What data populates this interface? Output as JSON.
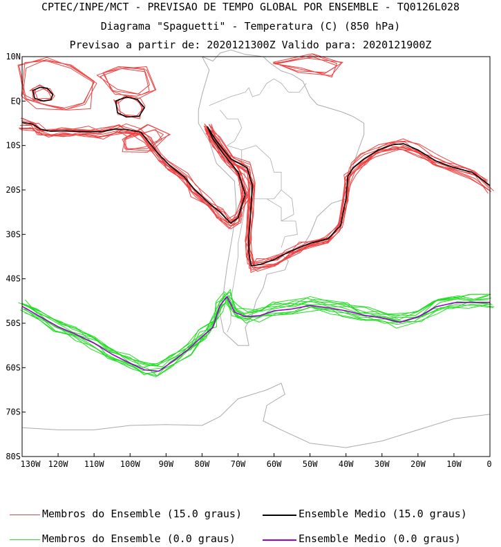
{
  "titles": {
    "line1": "CPTEC/INPE/MCT - PREVISAO DE TEMPO GLOBAL POR ENSEMBLE - TQ0126L028",
    "line2": "Diagrama \"Spaguetti\" - Temperatura (C) (850 hPa)",
    "line3": "Previsao a partir de: 2020121300Z  Valido para: 2020121900Z"
  },
  "map": {
    "lon_range": [
      -130,
      0
    ],
    "lat_range": [
      -80,
      10
    ],
    "lat_labels": [
      "10N",
      "EQ",
      "10S",
      "20S",
      "30S",
      "40S",
      "50S",
      "60S",
      "70S",
      "80S"
    ],
    "lon_labels": [
      "130W",
      "120W",
      "110W",
      "100W",
      "90W",
      "80W",
      "70W",
      "60W",
      "50W",
      "40W",
      "30W",
      "20W",
      "10W",
      "0"
    ],
    "colors": {
      "members_15": "#f04040",
      "mean_15": "#000000",
      "members_0": "#22dd22",
      "mean_0": "#9900cc",
      "coast": "#aaaaaa"
    },
    "mean_15": [
      [
        -130,
        -4.8
      ],
      [
        -127,
        -5.2
      ],
      [
        -125,
        -6.3
      ],
      [
        -122,
        -6.8
      ],
      [
        -118,
        -6.7
      ],
      [
        -112,
        -6.9
      ],
      [
        -108,
        -6.9
      ],
      [
        -104,
        -6.3
      ],
      [
        -101,
        -6.4
      ],
      [
        -97,
        -7
      ],
      [
        -95,
        -9
      ],
      [
        -92,
        -12
      ],
      [
        -89,
        -14.5
      ],
      [
        -85,
        -17
      ],
      [
        -82,
        -20
      ],
      [
        -78,
        -23
      ],
      [
        -75,
        -25
      ],
      [
        -72,
        -27.5
      ],
      [
        -70,
        -26.3
      ],
      [
        -68,
        -21
      ],
      [
        -70,
        -16
      ],
      [
        -74,
        -12
      ],
      [
        -77,
        -8.5
      ],
      [
        -78.5,
        -5.8
      ],
      [
        -76,
        -9
      ],
      [
        -72,
        -13
      ],
      [
        -67.5,
        -15
      ],
      [
        -66,
        -19
      ],
      [
        -66.5,
        -25
      ],
      [
        -67,
        -31
      ],
      [
        -67,
        -34.3
      ],
      [
        -66.3,
        -37.1
      ],
      [
        -64,
        -36.8
      ],
      [
        -60,
        -35.7
      ],
      [
        -56,
        -34
      ],
      [
        -53,
        -33
      ],
      [
        -50,
        -32
      ],
      [
        -45,
        -31
      ],
      [
        -41.5,
        -28
      ],
      [
        -40,
        -22
      ],
      [
        -39.5,
        -17
      ],
      [
        -38,
        -15
      ],
      [
        -35,
        -13
      ],
      [
        -31,
        -11
      ],
      [
        -27,
        -9.8
      ],
      [
        -24,
        -9.6
      ],
      [
        -20,
        -11
      ],
      [
        -15,
        -13.5
      ],
      [
        -10,
        -15
      ],
      [
        -5,
        -16
      ],
      [
        0,
        -19
      ]
    ],
    "mean_0": [
      [
        -130,
        -46.2
      ],
      [
        -125,
        -48.5
      ],
      [
        -120,
        -50.8
      ],
      [
        -115,
        -52.5
      ],
      [
        -110,
        -54.5
      ],
      [
        -105,
        -57
      ],
      [
        -100,
        -59
      ],
      [
        -96,
        -60.5
      ],
      [
        -92,
        -60.8
      ],
      [
        -88,
        -58.5
      ],
      [
        -84,
        -56
      ],
      [
        -80,
        -53
      ],
      [
        -77,
        -51
      ],
      [
        -75,
        -46
      ],
      [
        -73,
        -44
      ],
      [
        -71,
        -47.5
      ],
      [
        -68,
        -48.5
      ],
      [
        -64,
        -48.3
      ],
      [
        -60,
        -47.2
      ],
      [
        -55,
        -46.8
      ],
      [
        -50,
        -46
      ],
      [
        -45,
        -46.5
      ],
      [
        -40,
        -47.2
      ],
      [
        -35,
        -48.2
      ],
      [
        -30,
        -48.8
      ],
      [
        -25,
        -49.8
      ],
      [
        -20,
        -48.6
      ],
      [
        -15,
        -46.3
      ],
      [
        -10,
        -45.4
      ],
      [
        -5,
        -45.3
      ],
      [
        0,
        -45.3
      ]
    ],
    "closed_mean_15": [
      [
        [
          -127,
          2.4
        ],
        [
          -125,
          3.1
        ],
        [
          -123,
          2.9
        ],
        [
          -121.5,
          1.5
        ],
        [
          -122,
          0.3
        ],
        [
          -124,
          0
        ],
        [
          -126.5,
          0.6
        ],
        [
          -127,
          2.4
        ]
      ],
      [
        [
          -104,
          0
        ],
        [
          -101,
          0.9
        ],
        [
          -98,
          0.4
        ],
        [
          -96,
          -1.5
        ],
        [
          -97.5,
          -3.4
        ],
        [
          -101,
          -3.6
        ],
        [
          -103.5,
          -2.6
        ],
        [
          -104,
          0
        ]
      ]
    ],
    "red_blobs": [
      [
        [
          -130,
          8
        ],
        [
          -124,
          9.5
        ],
        [
          -116,
          8
        ],
        [
          -110,
          4
        ],
        [
          -112,
          -1
        ],
        [
          -118,
          -2
        ],
        [
          -125,
          -1
        ],
        [
          -130,
          1
        ]
      ],
      [
        [
          -108,
          6
        ],
        [
          -102,
          8
        ],
        [
          -96,
          7
        ],
        [
          -94,
          3
        ],
        [
          -98,
          1
        ],
        [
          -104,
          2
        ]
      ],
      [
        [
          -60,
          9
        ],
        [
          -50,
          10
        ],
        [
          -42,
          8
        ],
        [
          -45,
          6
        ],
        [
          -53,
          7
        ]
      ],
      [
        [
          -102,
          -8
        ],
        [
          -94,
          -6
        ],
        [
          -90,
          -8
        ],
        [
          -95,
          -11
        ],
        [
          -101,
          -11
        ]
      ]
    ],
    "coast_americas": [
      [
        -80,
        10
      ],
      [
        -78,
        7
      ],
      [
        -80,
        1.5
      ],
      [
        -81,
        -2
      ],
      [
        -81,
        -5
      ],
      [
        -78,
        -9
      ],
      [
        -76,
        -14
      ],
      [
        -71,
        -18
      ],
      [
        -70.5,
        -24
      ],
      [
        -71.5,
        -30
      ],
      [
        -73,
        -37
      ],
      [
        -74,
        -43
      ],
      [
        -75,
        -48
      ],
      [
        -74,
        -52
      ],
      [
        -70,
        -55
      ],
      [
        -67,
        -55
      ],
      [
        -68,
        -51
      ],
      [
        -66,
        -48
      ],
      [
        -65,
        -45
      ],
      [
        -63,
        -42
      ],
      [
        -62,
        -39
      ],
      [
        -57,
        -38
      ],
      [
        -56,
        -36
      ],
      [
        -58,
        -34.5
      ],
      [
        -53,
        -34
      ],
      [
        -50,
        -30
      ],
      [
        -48,
        -26
      ],
      [
        -44,
        -23
      ],
      [
        -40,
        -22
      ],
      [
        -39,
        -17
      ],
      [
        -37,
        -12
      ],
      [
        -35,
        -7.5
      ],
      [
        -35,
        -5
      ],
      [
        -38,
        -3.5
      ],
      [
        -41,
        -2.5
      ],
      [
        -45,
        -1.5
      ],
      [
        -48,
        -0.8
      ],
      [
        -50,
        1
      ],
      [
        -52,
        4.5
      ],
      [
        -55,
        6
      ],
      [
        -58,
        6.8
      ],
      [
        -61,
        8.5
      ],
      [
        -63,
        10
      ],
      [
        -68,
        10.5
      ],
      [
        -72,
        11.5
      ],
      [
        -75,
        10.8
      ],
      [
        -77,
        9
      ],
      [
        -80,
        10
      ]
    ],
    "borders": [
      [
        [
          -78,
          -1
        ],
        [
          -75,
          0
        ],
        [
          -72,
          1
        ],
        [
          -70,
          1.5
        ],
        [
          -68,
          2
        ],
        [
          -67,
          3
        ],
        [
          -66,
          1
        ],
        [
          -64,
          1.5
        ],
        [
          -62,
          4
        ],
        [
          -60,
          5
        ],
        [
          -58,
          4
        ],
        [
          -56,
          2
        ],
        [
          -53,
          2
        ],
        [
          -51,
          4
        ]
      ],
      [
        [
          -75,
          -2
        ],
        [
          -73,
          -4
        ],
        [
          -70,
          -4
        ],
        [
          -69,
          -6
        ],
        [
          -71,
          -9
        ],
        [
          -73,
          -10
        ],
        [
          -69,
          -11
        ],
        [
          -69,
          -14
        ],
        [
          -68,
          -17
        ],
        [
          -69,
          -18
        ],
        [
          -70,
          -19
        ]
      ],
      [
        [
          -69,
          -11
        ],
        [
          -65,
          -10
        ],
        [
          -61,
          -13
        ],
        [
          -60,
          -16
        ],
        [
          -58,
          -16
        ],
        [
          -58,
          -20
        ],
        [
          -60,
          -22
        ],
        [
          -62,
          -22
        ],
        [
          -67,
          -22
        ],
        [
          -68,
          -23
        ],
        [
          -68.5,
          -26
        ],
        [
          -69,
          -28
        ],
        [
          -70,
          -32
        ],
        [
          -70,
          -35
        ],
        [
          -71,
          -40
        ],
        [
          -72,
          -45
        ],
        [
          -72,
          -50
        ],
        [
          -73,
          -52
        ]
      ],
      [
        [
          -58,
          -20
        ],
        [
          -55,
          -22
        ],
        [
          -54.5,
          -25.5
        ],
        [
          -58,
          -27
        ],
        [
          -54,
          -27
        ],
        [
          -53.5,
          -30
        ],
        [
          -57,
          -30.5
        ],
        [
          -58,
          -33
        ]
      ],
      [
        [
          -62,
          -22
        ],
        [
          -60,
          -23
        ],
        [
          -58,
          -24
        ],
        [
          -58,
          -27
        ]
      ]
    ],
    "coast_antarctica": [
      [
        -130,
        -73.5
      ],
      [
        -120,
        -74
      ],
      [
        -110,
        -74
      ],
      [
        -100,
        -73
      ],
      [
        -90,
        -72.8
      ],
      [
        -80,
        -73
      ],
      [
        -75,
        -71
      ],
      [
        -70,
        -67
      ],
      [
        -62,
        -65
      ],
      [
        -58,
        -63.5
      ],
      [
        -57,
        -66
      ],
      [
        -62,
        -68.5
      ],
      [
        -63,
        -72
      ],
      [
        -58,
        -74
      ],
      [
        -50,
        -77
      ],
      [
        -40,
        -78
      ],
      [
        -30,
        -76.5
      ],
      [
        -20,
        -74
      ],
      [
        -10,
        -71.5
      ],
      [
        0,
        -70.5
      ]
    ]
  },
  "legend": {
    "members_15_label": "Membros do Ensemble (15.0 graus)",
    "mean_15_label": "Ensemble Medio (15.0 graus)",
    "members_0_label": "Membros do Ensemble (0.0 graus)",
    "mean_0_label": "Ensemble Medio (0.0 graus)"
  }
}
